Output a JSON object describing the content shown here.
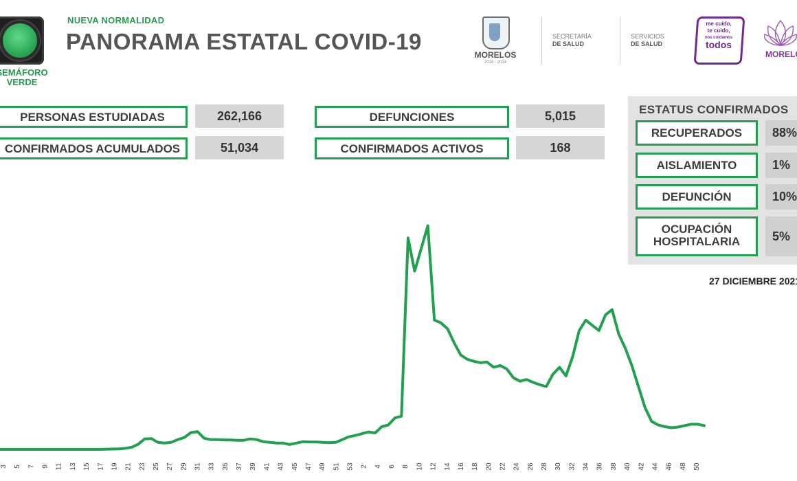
{
  "header": {
    "subtitle": "NUEVA NORMALIDAD",
    "title": "PANORAMA ESTATAL COVID-19",
    "semaforo_label": "SEMÁFORO\nVERDE",
    "semaforo_color": "#2fae5a"
  },
  "logos": {
    "state_name": "MORELOS",
    "state_years": "2018 - 2024",
    "secretaria_line1": "SECRETARÍA",
    "secretaria_line2": "DE SALUD",
    "servicios_line1": "SERVICIOS",
    "servicios_line2": "DE SALUD",
    "cuido_line1": "me cuido,",
    "cuido_line2": "te cuido,",
    "cuido_line3": "nos cuidamos",
    "cuido_line4": "todos",
    "brand": "MORELOS"
  },
  "kpis": {
    "personas_estudiadas": {
      "label": "PERSONAS ESTUDIADAS",
      "value": "262,166"
    },
    "confirmados_acumulados": {
      "label": "CONFIRMADOS ACUMULADOS",
      "value": "51,034"
    },
    "defunciones": {
      "label": "DEFUNCIONES",
      "value": "5,015"
    },
    "confirmados_activos": {
      "label": "CONFIRMADOS ACTIVOS",
      "value": "168"
    }
  },
  "status": {
    "title": "ESTATUS CONFIRMADOS",
    "recuperados": {
      "label": "RECUPERADOS",
      "value": "88%"
    },
    "aislamiento": {
      "label": "AISLAMIENTO",
      "value": "1%"
    },
    "defuncion": {
      "label": "DEFUNCIÓN",
      "value": "10%"
    },
    "ocupacion": {
      "label_line1": "OCUPACIÓN",
      "label_line2": "HOSPITALARIA",
      "value": "5%"
    }
  },
  "date": "27 DICIEMBRE 2021",
  "colors": {
    "accent_green": "#22a04f",
    "panel_gray": "#e3e3e3",
    "value_gray": "#d6d6d6"
  },
  "chart_data": {
    "type": "line",
    "title": "",
    "xlabel": "",
    "ylabel": "",
    "grid": false,
    "color": "#22a04f",
    "tick_labels": [
      "3",
      "5",
      "7",
      "9",
      "11",
      "13",
      "15",
      "17",
      "19",
      "21",
      "23",
      "25",
      "27",
      "29",
      "31",
      "33",
      "35",
      "37",
      "39",
      "41",
      "43",
      "45",
      "47",
      "49",
      "51",
      "53",
      "2",
      "4",
      "6",
      "8",
      "10",
      "12",
      "14",
      "16",
      "18",
      "20",
      "22",
      "24",
      "26",
      "28",
      "30",
      "32",
      "34",
      "36",
      "38",
      "40",
      "42",
      "44",
      "46",
      "48",
      "50"
    ],
    "values": [
      0,
      0,
      0,
      0,
      0,
      0,
      0,
      0,
      0,
      0,
      0,
      0,
      0,
      0,
      0,
      0,
      0.5,
      1,
      1.5,
      3,
      6,
      15,
      30,
      31,
      20,
      18,
      20,
      28,
      34,
      48,
      51,
      32,
      28,
      28,
      27,
      27,
      26,
      26,
      30,
      28,
      22,
      20,
      18,
      18,
      14,
      18,
      22,
      21,
      21,
      20,
      19,
      20,
      28,
      36,
      40,
      45,
      50,
      47,
      65,
      70,
      90,
      95,
      605,
      510,
      575,
      640,
      370,
      362,
      345,
      305,
      270,
      258,
      252,
      248,
      250,
      235,
      240,
      230,
      205,
      195,
      200,
      192,
      185,
      180,
      215,
      235,
      210,
      265,
      340,
      370,
      355,
      340,
      385,
      400,
      330,
      290,
      240,
      180,
      120,
      80,
      70,
      65,
      62,
      64,
      68,
      72,
      72,
      68
    ],
    "ylim": [
      0,
      700
    ]
  }
}
